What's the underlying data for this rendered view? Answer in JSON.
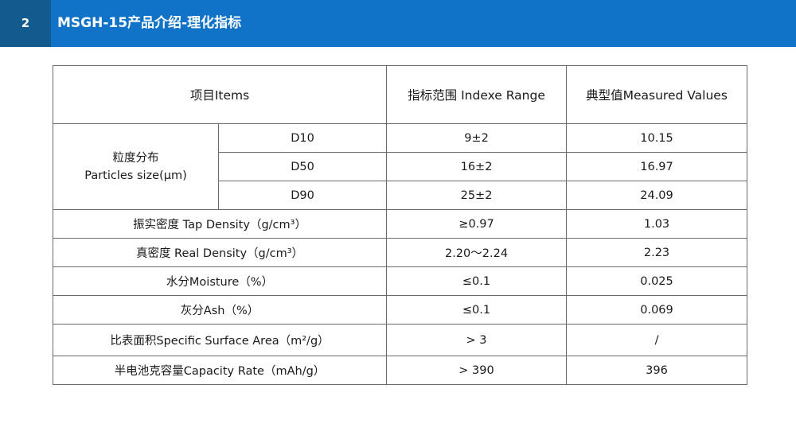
{
  "header": {
    "slide_number": "2",
    "title": "MSGH-15产品介绍-理化指标"
  },
  "table": {
    "headers": [
      "项目Items",
      "指标范围  Indexe Range",
      "典型值Measured Values"
    ],
    "particle_size": {
      "label_cn": "粒度分布",
      "label_en": "Particles size(μm)",
      "rows": [
        {
          "name": "D10",
          "range": "9±2",
          "value": "10.15"
        },
        {
          "name": "D50",
          "range": "16±2",
          "value": "16.97"
        },
        {
          "name": "D90",
          "range": "25±2",
          "value": "24.09"
        }
      ]
    },
    "rows": [
      {
        "item": "振实密度  Tap Density（g/cm³）",
        "range": "≥0.97",
        "value": "1.03"
      },
      {
        "item": "真密度  Real Density（g/cm³）",
        "range": "2.20～2.24",
        "value": "2.23"
      },
      {
        "item": "水分Moisture（%）",
        "range": "≤0.1",
        "value": "0.025"
      },
      {
        "item": "灰分Ash（%）",
        "range": "≤0.1",
        "value": "0.069"
      },
      {
        "item": "比表面积Specific Surface Area（m²/g）",
        "range": "> 3",
        "value": "/"
      },
      {
        "item": "半电池克容量Capacity Rate（mAh/g）",
        "range": "> 390",
        "value": "396"
      }
    ]
  }
}
